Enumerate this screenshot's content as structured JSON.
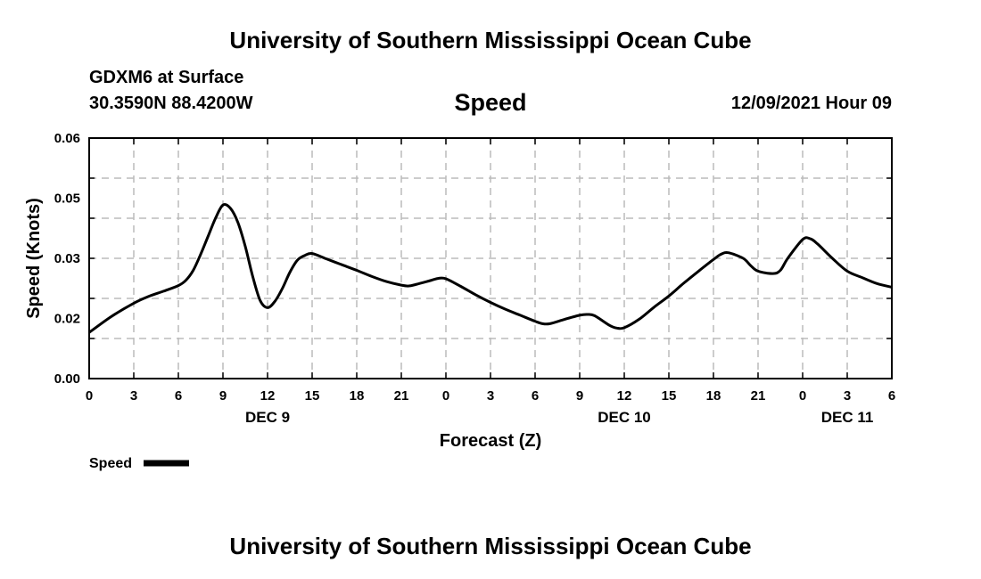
{
  "page": {
    "title_top": "University of Southern Mississippi Ocean Cube",
    "title_bottom": "University of Southern Mississippi Ocean Cube",
    "station": "GDXM6 at Surface",
    "coords": "30.3590N  88.4200W",
    "chart_title": "Speed",
    "timestamp": "12/09/2021 Hour 09"
  },
  "chart_data": {
    "type": "line",
    "title": "Speed",
    "xlabel": "Forecast (Z)",
    "ylabel": "Speed (Knots)",
    "xlim": [
      0,
      54
    ],
    "ylim": [
      0,
      0.06
    ],
    "x_unit": "hours from 0Z Dec 9",
    "y_ticks": [
      0,
      0.01,
      0.02,
      0.03,
      0.04,
      0.05,
      0.06
    ],
    "y_tick_labels": [
      "0.00",
      "0.02",
      "0.03",
      "0.05",
      "0.06"
    ],
    "y_tick_label_values": [
      0,
      0.015,
      0.03,
      0.045,
      0.06
    ],
    "x_ticks": [
      0,
      3,
      6,
      9,
      12,
      15,
      18,
      21,
      24,
      27,
      30,
      33,
      36,
      39,
      42,
      45,
      48,
      51,
      54
    ],
    "x_tick_labels": [
      "0",
      "3",
      "6",
      "9",
      "12",
      "15",
      "18",
      "21",
      "0",
      "3",
      "6",
      "9",
      "12",
      "15",
      "18",
      "21",
      "0",
      "3",
      "6"
    ],
    "date_labels": [
      {
        "x": 12,
        "label": "DEC 9"
      },
      {
        "x": 36,
        "label": "DEC 10"
      },
      {
        "x": 51,
        "label": "DEC 11"
      }
    ],
    "grid": true,
    "legend": {
      "label": "Speed",
      "placement": "bottom-left"
    },
    "series": [
      {
        "name": "Speed",
        "x": [
          0,
          1.5,
          3,
          4,
          5,
          6,
          6.5,
          7,
          7.5,
          8,
          8.5,
          9,
          9.5,
          10,
          10.5,
          11,
          11.5,
          12,
          12.5,
          13,
          13.5,
          14,
          14.5,
          15,
          16,
          17,
          18,
          19,
          20,
          21,
          21.5,
          22,
          23,
          23.5,
          24,
          25,
          26,
          27,
          28,
          29,
          30,
          30.5,
          31,
          32,
          33,
          33.5,
          34,
          35,
          35.5,
          36,
          37,
          38,
          39,
          40,
          41,
          42,
          42.5,
          43,
          44,
          44.5,
          45,
          46,
          46.5,
          47,
          48,
          48.5,
          49,
          50,
          51,
          52,
          53,
          54
        ],
        "y": [
          0.0115,
          0.0155,
          0.0188,
          0.0205,
          0.0218,
          0.0232,
          0.0245,
          0.027,
          0.031,
          0.0355,
          0.04,
          0.0433,
          0.0425,
          0.039,
          0.033,
          0.0255,
          0.0195,
          0.0177,
          0.0193,
          0.0225,
          0.0265,
          0.0295,
          0.0307,
          0.0312,
          0.0298,
          0.0284,
          0.027,
          0.0255,
          0.0242,
          0.0233,
          0.0231,
          0.0235,
          0.0245,
          0.025,
          0.0249,
          0.023,
          0.0209,
          0.019,
          0.0173,
          0.0158,
          0.0143,
          0.0137,
          0.0137,
          0.0148,
          0.0158,
          0.016,
          0.0157,
          0.0133,
          0.0126,
          0.0127,
          0.0148,
          0.0178,
          0.0206,
          0.0238,
          0.0268,
          0.0297,
          0.031,
          0.0314,
          0.03,
          0.0282,
          0.0268,
          0.0262,
          0.027,
          0.03,
          0.0347,
          0.0349,
          0.0336,
          0.03,
          0.0268,
          0.0252,
          0.0237,
          0.0228
        ]
      }
    ]
  }
}
